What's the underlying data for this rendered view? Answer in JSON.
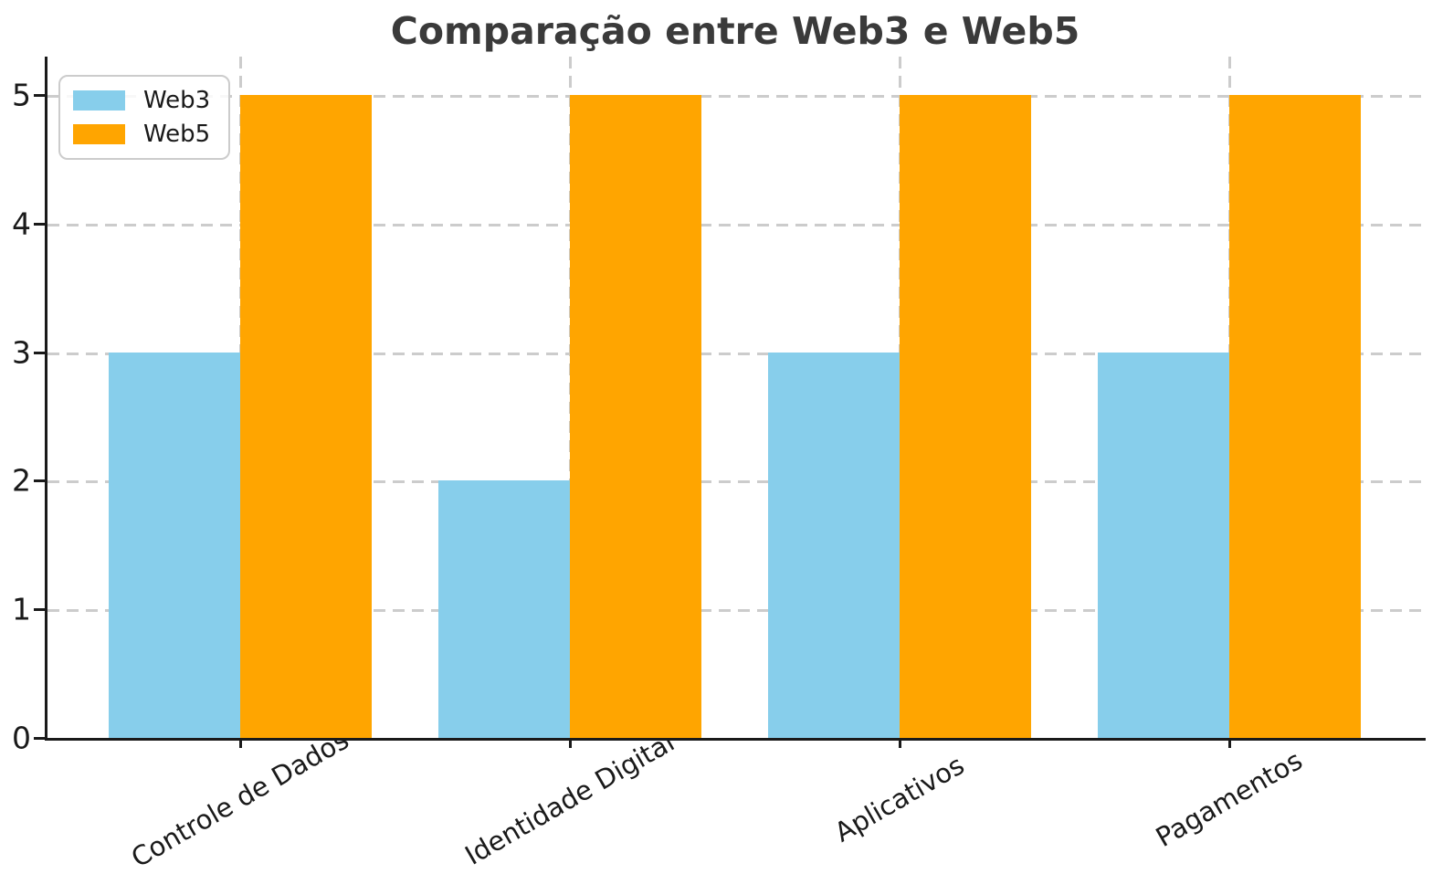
{
  "chart_data": {
    "type": "bar",
    "title": "Comparação entre Web3 e Web5",
    "categories": [
      "Controle de Dados",
      "Identidade Digital",
      "Aplicativos",
      "Pagamentos"
    ],
    "series": [
      {
        "name": "Web3",
        "color": "#87CEEB",
        "values": [
          3,
          2,
          3,
          3
        ]
      },
      {
        "name": "Web5",
        "color": "#FFA500",
        "values": [
          5,
          5,
          5,
          5
        ]
      }
    ],
    "xlabel": "",
    "ylabel": "",
    "ylim": [
      0,
      5.3
    ],
    "yticks": [
      0,
      1,
      2,
      3,
      4,
      5
    ],
    "grid": {
      "visible": true,
      "style": "dashed",
      "color": "#cccccc",
      "axes": "both"
    },
    "legend": {
      "position": "upper-left",
      "entries": [
        "Web3",
        "Web5"
      ]
    },
    "x_tick_rotation_deg": -30,
    "colors": {
      "axis": "#1a1a1a",
      "title": "#3a3a3a",
      "tick_label": "#1a1a1a",
      "grid": "#cccccc"
    }
  }
}
